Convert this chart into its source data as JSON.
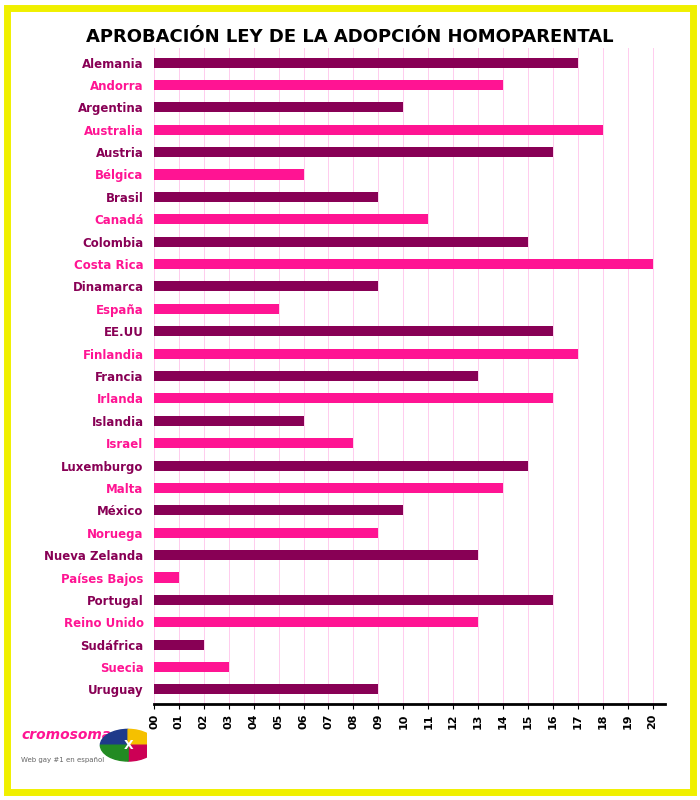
{
  "title": "APROBACIÓN LEY DE LA ADOPCIÓN HOMOPARENTAL",
  "countries": [
    "Alemania",
    "Andorra",
    "Argentina",
    "Australia",
    "Austria",
    "Bélgica",
    "Brasil",
    "Canadá",
    "Colombia",
    "Costa Rica",
    "Dinamarca",
    "España",
    "EE.UU",
    "Finlandia",
    "Francia",
    "Irlanda",
    "Islandia",
    "Israel",
    "Luxemburgo",
    "Malta",
    "México",
    "Noruega",
    "Nueva Zelanda",
    "Países Bajos",
    "Portugal",
    "Reino Unido",
    "Sudáfrica",
    "Suecia",
    "Uruguay"
  ],
  "end_years": [
    2017,
    2014,
    2010,
    2018,
    2016,
    2006,
    2009,
    2011,
    2015,
    2020,
    2009,
    2005,
    2016,
    2017,
    2013,
    2016,
    2006,
    2008,
    2015,
    2014,
    2010,
    2009,
    2013,
    2001,
    2016,
    2013,
    2002,
    2003,
    2009
  ],
  "start_year": 2000,
  "xmin": 2000,
  "xmax": 2020,
  "background_color": "#ffffff",
  "outer_border_color": "#f0f000",
  "grid_color": "#ffccee",
  "title_fontsize": 13,
  "tick_fontsize": 8,
  "label_fontsize": 8.5,
  "bar_height": 0.45,
  "label_colors": [
    "#880055",
    "#ff1493",
    "#880055",
    "#ff1493",
    "#880055",
    "#ff1493",
    "#880055",
    "#ff1493",
    "#880055",
    "#ff1493",
    "#880055",
    "#ff1493",
    "#880055",
    "#ff1493",
    "#880055",
    "#ff1493",
    "#880055",
    "#ff1493",
    "#880055",
    "#ff1493",
    "#880055",
    "#ff1493",
    "#880055",
    "#ff1493",
    "#880055",
    "#ff1493",
    "#880055",
    "#ff1493",
    "#880055"
  ],
  "bar_colors": [
    "#880055",
    "#ff1493",
    "#880055",
    "#ff1493",
    "#880055",
    "#ff1493",
    "#880055",
    "#ff1493",
    "#880055",
    "#ff1493",
    "#880055",
    "#ff1493",
    "#880055",
    "#ff1493",
    "#880055",
    "#ff1493",
    "#880055",
    "#ff1493",
    "#880055",
    "#ff1493",
    "#880055",
    "#ff1493",
    "#880055",
    "#ff1493",
    "#880055",
    "#ff1493",
    "#880055",
    "#ff1493",
    "#880055"
  ]
}
